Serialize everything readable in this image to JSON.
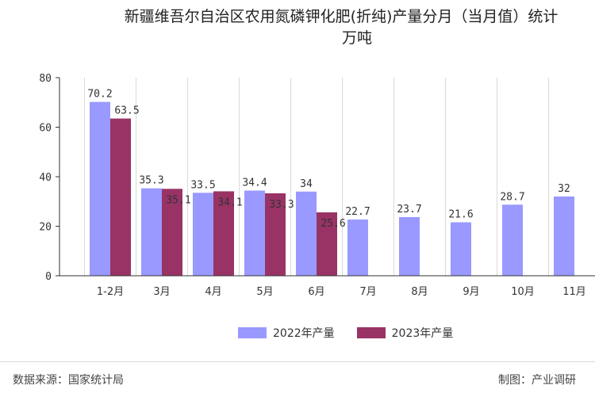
{
  "chart_data": {
    "type": "bar",
    "title_line1": "新疆维吾尔自治区农用氮磷钾化肥(折纯)产量分月（当月值）统计",
    "title_line2": "万吨",
    "categories": [
      "1-2月",
      "3月",
      "4月",
      "5月",
      "6月",
      "7月",
      "8月",
      "9月",
      "10月",
      "11月"
    ],
    "series": [
      {
        "name": "2022年产量",
        "color": "#9999ff",
        "values": [
          70.2,
          35.3,
          33.5,
          34.4,
          34,
          22.7,
          23.7,
          21.6,
          28.7,
          32
        ]
      },
      {
        "name": "2023年产量",
        "color": "#993366",
        "values": [
          63.5,
          35.1,
          34.1,
          33.3,
          25.6,
          null,
          null,
          null,
          null,
          null
        ]
      }
    ],
    "ylim": [
      0,
      80
    ],
    "yticks": [
      "0",
      "20",
      "40",
      "60",
      "80"
    ],
    "grid": true,
    "legend_position": "bottom"
  },
  "footer": {
    "source": "数据来源：国家统计局",
    "credit": "制图：产业调研"
  }
}
